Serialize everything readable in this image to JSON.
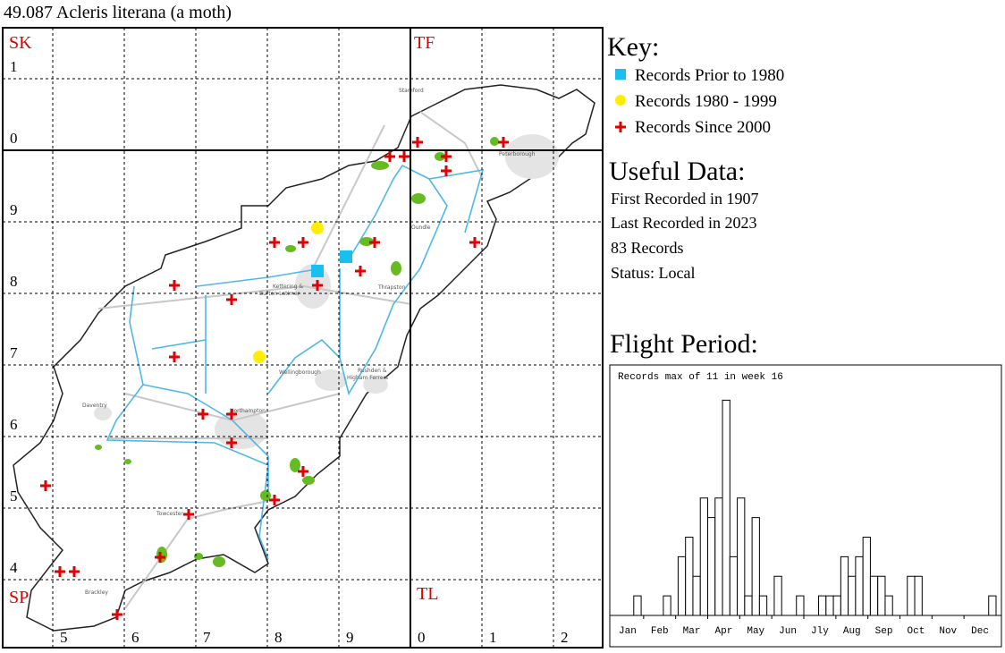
{
  "title": "49.087 Acleris literana (a moth)",
  "map": {
    "grid_squares": [
      "SK",
      "TF",
      "SP",
      "TL"
    ],
    "northings": [
      "1",
      "0",
      "9",
      "8",
      "7",
      "6",
      "5",
      "4"
    ],
    "eastings": [
      "5",
      "6",
      "7",
      "8",
      "9",
      "0",
      "1",
      "2"
    ],
    "places": [
      "Stamford",
      "Peterborough",
      "Oundle",
      "Kettering &",
      "Burton Latimer",
      "Thrapston",
      "Wellingborough",
      "Rushden &",
      "Higham Ferrers",
      "Daventry",
      "Northampton",
      "Towcester",
      "Brackley"
    ]
  },
  "key": {
    "title": "Key:",
    "items": [
      "Records Prior to 1980",
      "Records 1980 - 1999",
      "Records Since 2000"
    ]
  },
  "useful_data": {
    "title": "Useful Data:",
    "lines": [
      "First Recorded in 1907",
      "Last Recorded in 2023",
      "83 Records",
      "Status: Local"
    ]
  },
  "chart_data": {
    "type": "bar",
    "title": "Flight Period:",
    "annotation": "Records max of 11 in week 16",
    "x": [
      1,
      2,
      3,
      4,
      5,
      6,
      7,
      8,
      9,
      10,
      11,
      12,
      13,
      14,
      15,
      16,
      17,
      18,
      19,
      20,
      21,
      22,
      23,
      24,
      25,
      26,
      27,
      28,
      29,
      30,
      31,
      32,
      33,
      34,
      35,
      36,
      37,
      38,
      39,
      40,
      41,
      42,
      43,
      44,
      45,
      46,
      47,
      48,
      49,
      50,
      51,
      52
    ],
    "values": [
      0,
      0,
      0,
      1,
      0,
      0,
      0,
      1,
      0,
      3,
      4,
      2,
      6,
      5,
      6,
      11,
      3,
      6,
      1,
      5,
      1,
      0,
      2,
      0,
      0,
      1,
      0,
      0,
      1,
      1,
      1,
      3,
      2,
      3,
      4,
      2,
      2,
      1,
      0,
      0,
      2,
      2,
      0,
      0,
      0,
      0,
      0,
      0,
      0,
      0,
      0,
      1
    ],
    "xlim": [
      0.5,
      52.5
    ],
    "ylim": [
      0,
      12.8
    ],
    "xticks": [
      {
        "value": 2.67,
        "label": "Jan"
      },
      {
        "value": 7,
        "label": "Feb"
      },
      {
        "value": 11.33,
        "label": "Mar"
      },
      {
        "value": 15.67,
        "label": "Apr"
      },
      {
        "value": 20,
        "label": "May"
      },
      {
        "value": 24.33,
        "label": "Jun"
      },
      {
        "value": 28.67,
        "label": "Jly"
      },
      {
        "value": 33,
        "label": "Aug"
      },
      {
        "value": 37.33,
        "label": "Sep"
      },
      {
        "value": 41.67,
        "label": "Oct"
      },
      {
        "value": 46,
        "label": "Nov"
      },
      {
        "value": 50.33,
        "label": "Dec"
      }
    ],
    "color": "#ffffff"
  }
}
